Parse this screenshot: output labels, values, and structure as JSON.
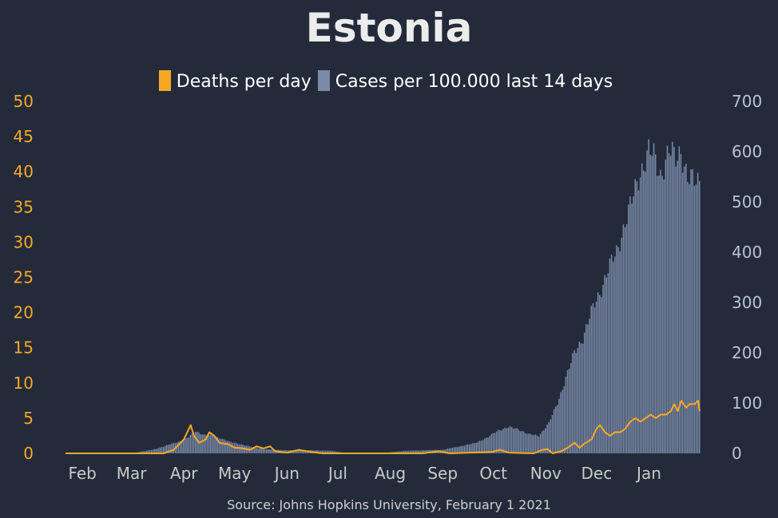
{
  "colors": {
    "background": "#232b3b",
    "deaths": "#f7a823",
    "cases": "#7a8aa8",
    "left_axis": "#f7a823",
    "right_axis": "#b8c2d6",
    "x_axis": "#c9c9c9"
  },
  "chart_data": {
    "type": "bar+line",
    "title": "Estonia",
    "legend": "top-center",
    "grid": false,
    "source": "Source: Johns Hopkins University, February 1 2021",
    "x_tick_labels": [
      "Feb",
      "Mar",
      "Apr",
      "May",
      "Jun",
      "Jul",
      "Aug",
      "Sep",
      "Oct",
      "Nov",
      "Dec",
      "Jan"
    ],
    "y_left": {
      "range": [
        0,
        50
      ],
      "ticks": [
        "0",
        "5",
        "10",
        "15",
        "20",
        "25",
        "30",
        "35",
        "40",
        "45",
        "50"
      ]
    },
    "y_right": {
      "range": [
        0,
        700
      ],
      "ticks": [
        "0",
        "100",
        "200",
        "300",
        "400",
        "500",
        "600",
        "700"
      ]
    },
    "series": [
      {
        "name": "Cases per 100.000 last 14 days",
        "type": "bar",
        "axis": "right",
        "points": [
          [
            "2020-01-22",
            0
          ],
          [
            "2020-03-01",
            0
          ],
          [
            "2020-03-15",
            8
          ],
          [
            "2020-03-22",
            16
          ],
          [
            "2020-03-29",
            23
          ],
          [
            "2020-04-03",
            30
          ],
          [
            "2020-04-08",
            44
          ],
          [
            "2020-04-13",
            37
          ],
          [
            "2020-04-18",
            35
          ],
          [
            "2020-04-23",
            30
          ],
          [
            "2020-04-28",
            23
          ],
          [
            "2020-05-05",
            18
          ],
          [
            "2020-05-12",
            12
          ],
          [
            "2020-05-20",
            8
          ],
          [
            "2020-06-01",
            6
          ],
          [
            "2020-06-15",
            6
          ],
          [
            "2020-06-28",
            5
          ],
          [
            "2020-07-05",
            1
          ],
          [
            "2020-07-20",
            0
          ],
          [
            "2020-08-01",
            2
          ],
          [
            "2020-08-10",
            5
          ],
          [
            "2020-08-20",
            6
          ],
          [
            "2020-09-01",
            7
          ],
          [
            "2020-09-10",
            13
          ],
          [
            "2020-09-20",
            20
          ],
          [
            "2020-09-28",
            32
          ],
          [
            "2020-10-04",
            46
          ],
          [
            "2020-10-10",
            52
          ],
          [
            "2020-10-16",
            48
          ],
          [
            "2020-10-22",
            38
          ],
          [
            "2020-10-28",
            35
          ],
          [
            "2020-11-03",
            60
          ],
          [
            "2020-11-08",
            100
          ],
          [
            "2020-11-13",
            150
          ],
          [
            "2020-11-18",
            200
          ],
          [
            "2020-11-23",
            230
          ],
          [
            "2020-11-28",
            280
          ],
          [
            "2020-12-03",
            320
          ],
          [
            "2020-12-08",
            365
          ],
          [
            "2020-12-13",
            400
          ],
          [
            "2020-12-18",
            460
          ],
          [
            "2020-12-22",
            500
          ],
          [
            "2020-12-27",
            560
          ],
          [
            "2021-01-01",
            600
          ],
          [
            "2021-01-04",
            590
          ],
          [
            "2021-01-08",
            555
          ],
          [
            "2021-01-13",
            600
          ],
          [
            "2021-01-17",
            585
          ],
          [
            "2021-01-20",
            605
          ],
          [
            "2021-01-24",
            545
          ],
          [
            "2021-01-28",
            540
          ],
          [
            "2021-01-31",
            545
          ]
        ]
      },
      {
        "name": "Deaths per day",
        "type": "line",
        "axis": "left",
        "points": [
          [
            "2020-01-22",
            0
          ],
          [
            "2020-03-20",
            0
          ],
          [
            "2020-03-26",
            0.5
          ],
          [
            "2020-04-01",
            2
          ],
          [
            "2020-04-05",
            4
          ],
          [
            "2020-04-07",
            2.5
          ],
          [
            "2020-04-10",
            1.5
          ],
          [
            "2020-04-14",
            2
          ],
          [
            "2020-04-16",
            3
          ],
          [
            "2020-04-19",
            2.5
          ],
          [
            "2020-04-22",
            1.5
          ],
          [
            "2020-04-27",
            1.3
          ],
          [
            "2020-05-01",
            0.8
          ],
          [
            "2020-05-06",
            0.7
          ],
          [
            "2020-05-10",
            0.5
          ],
          [
            "2020-05-14",
            1
          ],
          [
            "2020-05-18",
            0.7
          ],
          [
            "2020-05-22",
            1
          ],
          [
            "2020-05-25",
            0.3
          ],
          [
            "2020-06-01",
            0.1
          ],
          [
            "2020-06-08",
            0.5
          ],
          [
            "2020-06-15",
            0.2
          ],
          [
            "2020-06-22",
            0
          ],
          [
            "2020-08-20",
            0
          ],
          [
            "2020-08-30",
            0.3
          ],
          [
            "2020-09-05",
            0
          ],
          [
            "2020-09-30",
            0.2
          ],
          [
            "2020-10-05",
            0.5
          ],
          [
            "2020-10-10",
            0.1
          ],
          [
            "2020-10-25",
            0
          ],
          [
            "2020-10-30",
            0.5
          ],
          [
            "2020-11-02",
            0.6
          ],
          [
            "2020-11-05",
            0
          ],
          [
            "2020-11-10",
            0.3
          ],
          [
            "2020-11-14",
            0.8
          ],
          [
            "2020-11-18",
            1.5
          ],
          [
            "2020-11-21",
            0.8
          ],
          [
            "2020-11-24",
            1.4
          ],
          [
            "2020-11-28",
            2
          ],
          [
            "2020-12-01",
            3.5
          ],
          [
            "2020-12-03",
            4
          ],
          [
            "2020-12-06",
            3
          ],
          [
            "2020-12-09",
            2.5
          ],
          [
            "2020-12-12",
            3
          ],
          [
            "2020-12-15",
            3
          ],
          [
            "2020-12-18",
            3.5
          ],
          [
            "2020-12-21",
            4.5
          ],
          [
            "2020-12-24",
            5
          ],
          [
            "2020-12-27",
            4.5
          ],
          [
            "2020-12-30",
            5
          ],
          [
            "2021-01-02",
            5.5
          ],
          [
            "2021-01-05",
            5
          ],
          [
            "2021-01-08",
            5.5
          ],
          [
            "2021-01-11",
            5.5
          ],
          [
            "2021-01-14",
            6
          ],
          [
            "2021-01-16",
            7
          ],
          [
            "2021-01-18",
            6
          ],
          [
            "2021-01-20",
            7.5
          ],
          [
            "2021-01-23",
            6.5
          ],
          [
            "2021-01-25",
            7
          ],
          [
            "2021-01-28",
            7
          ],
          [
            "2021-01-30",
            7.5
          ],
          [
            "2021-01-31",
            6
          ]
        ]
      }
    ]
  }
}
